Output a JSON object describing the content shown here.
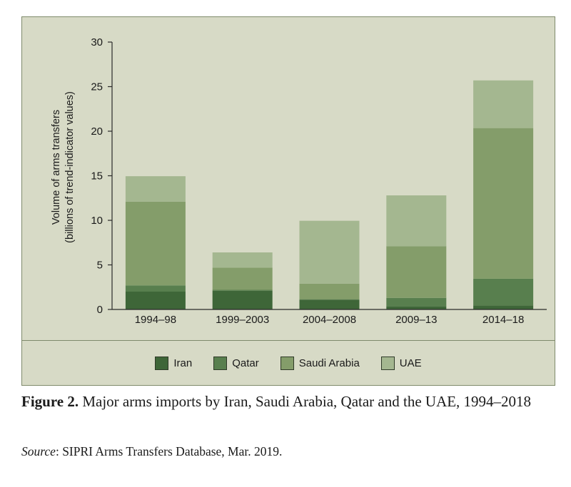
{
  "chart_data": {
    "type": "bar",
    "stacked": true,
    "categories": [
      "1994–98",
      "1999–2003",
      "2004–2008",
      "2009–13",
      "2014–18"
    ],
    "series": [
      {
        "name": "Iran",
        "values": [
          2.0,
          2.1,
          1.1,
          0.35,
          0.45
        ],
        "color": "#3e6638"
      },
      {
        "name": "Qatar",
        "values": [
          0.7,
          0.1,
          0.05,
          0.95,
          3.0
        ],
        "color": "#587f4e"
      },
      {
        "name": "Saudi Arabia",
        "values": [
          9.4,
          2.5,
          1.75,
          5.8,
          16.9
        ],
        "color": "#849d6a"
      },
      {
        "name": "UAE",
        "values": [
          2.85,
          1.7,
          7.05,
          5.7,
          5.35
        ],
        "color": "#a4b790"
      }
    ],
    "ylabel_line1": "Volume of arms transfers",
    "ylabel_line2": "(billions of trend-indicator values)",
    "ylim": [
      0,
      30
    ],
    "yticks": [
      0,
      5,
      10,
      15,
      20,
      25,
      30
    ],
    "grid": false,
    "legend": "bottom"
  },
  "caption": {
    "label": "Figure 2.",
    "text": " Major arms imports by Iran, Saudi Arabia, Qatar and the UAE, 1994–2018"
  },
  "source": {
    "label": "Source",
    "text": ": SIPRI Arms Transfers Database, Mar. 2019."
  }
}
